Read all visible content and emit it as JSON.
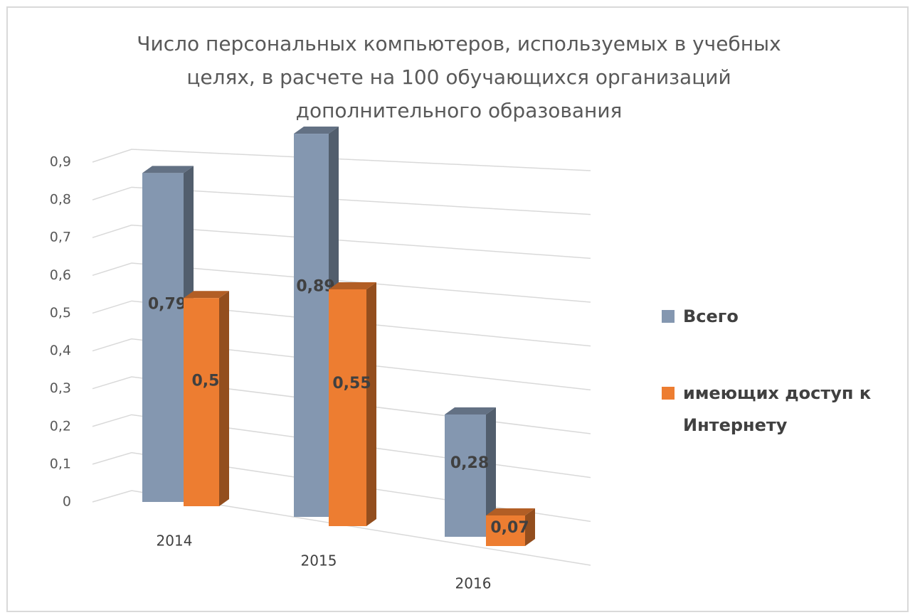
{
  "chart_data": {
    "type": "bar3d",
    "title": "Число персональных компьютеров, используемых в учебных целях, в расчете на 100 обучающихся организаций дополнительного образования",
    "categories": [
      "2014",
      "2015",
      "2016"
    ],
    "series": [
      {
        "name": "Всего",
        "color": "#8497b0",
        "values": [
          0.79,
          0.89,
          0.28
        ],
        "value_labels": [
          "0,79",
          "0,89",
          "0,28"
        ]
      },
      {
        "name": "имеющих доступ к Интернету",
        "color": "#ed7d31",
        "values": [
          0.5,
          0.55,
          0.07
        ],
        "value_labels": [
          "0,5",
          "0,55",
          "0,07"
        ]
      }
    ],
    "ylim": [
      0,
      0.9
    ],
    "yticks": [
      0,
      {
        "value": 0.1,
        "label": "0,1"
      },
      {
        "value": 0.2,
        "label": "0,2"
      },
      {
        "value": 0.3,
        "label": "0,3"
      },
      {
        "value": 0.4,
        "label": "0,4"
      },
      {
        "value": 0.5,
        "label": "0,5"
      },
      {
        "value": 0.6,
        "label": "0,6"
      },
      {
        "value": 0.7,
        "label": "0,7"
      },
      {
        "value": 0.8,
        "label": "0,8"
      },
      {
        "value": 0.9,
        "label": "0,9"
      }
    ],
    "grid": true,
    "legend": "right"
  }
}
